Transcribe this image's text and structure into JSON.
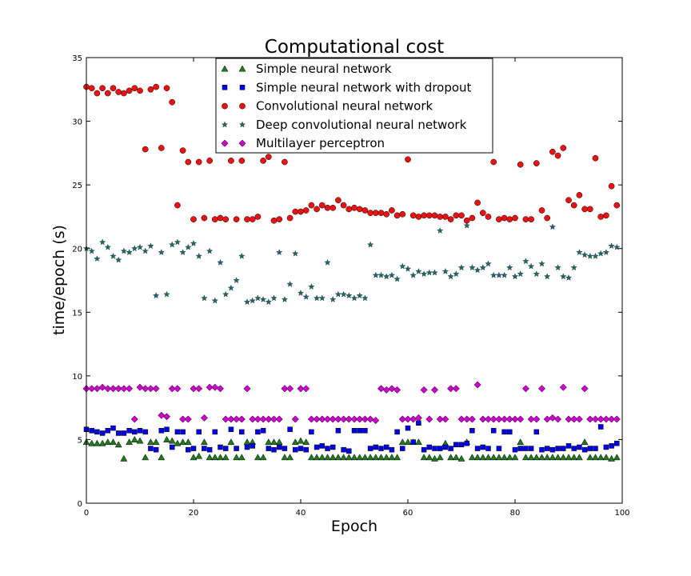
{
  "chart_data": {
    "type": "scatter",
    "title": "Computational cost",
    "xlabel": "Epoch",
    "ylabel": "time/epoch (s)",
    "xlim": [
      0,
      100
    ],
    "ylim": [
      0,
      35
    ],
    "xticks": [
      0,
      20,
      40,
      60,
      80,
      100
    ],
    "yticks": [
      0,
      5,
      10,
      15,
      20,
      25,
      30,
      35
    ],
    "grid": false,
    "legend_position": "top-center",
    "series": [
      {
        "name": "Simple neural network",
        "marker": "triangle",
        "color": "#1f7a1f",
        "x": [
          0,
          1,
          2,
          3,
          4,
          5,
          6,
          7,
          8,
          9,
          10,
          11,
          12,
          13,
          14,
          15,
          16,
          17,
          18,
          19,
          20,
          21,
          22,
          23,
          24,
          25,
          26,
          27,
          28,
          29,
          30,
          31,
          32,
          33,
          34,
          35,
          36,
          37,
          38,
          39,
          40,
          41,
          42,
          43,
          44,
          45,
          46,
          47,
          48,
          49,
          50,
          51,
          52,
          53,
          54,
          55,
          56,
          57,
          58,
          59,
          60,
          61,
          62,
          63,
          64,
          65,
          66,
          67,
          68,
          69,
          70,
          71,
          72,
          73,
          74,
          75,
          76,
          77,
          78,
          79,
          80,
          81,
          82,
          83,
          84,
          85,
          86,
          87,
          88,
          89,
          90,
          91,
          92,
          93,
          94,
          95,
          96,
          97,
          98,
          99
        ],
        "y": [
          4.8,
          4.7,
          4.7,
          4.7,
          4.8,
          4.8,
          4.6,
          3.5,
          4.8,
          5.0,
          4.9,
          3.6,
          4.8,
          4.8,
          3.6,
          5.0,
          4.9,
          4.7,
          4.8,
          4.8,
          3.6,
          3.7,
          4.8,
          3.6,
          3.6,
          3.6,
          3.6,
          4.8,
          3.6,
          3.6,
          4.8,
          4.8,
          3.6,
          3.6,
          4.8,
          4.8,
          4.8,
          3.6,
          3.6,
          4.8,
          4.9,
          4.8,
          3.6,
          3.6,
          3.6,
          3.6,
          3.6,
          3.6,
          3.6,
          3.6,
          3.6,
          3.6,
          3.6,
          3.6,
          3.6,
          3.6,
          3.6,
          3.6,
          3.6,
          4.8,
          4.8,
          4.8,
          4.8,
          3.6,
          3.6,
          3.5,
          3.6,
          4.7,
          3.6,
          3.6,
          3.5,
          4.8,
          3.6,
          3.6,
          3.6,
          3.6,
          3.6,
          3.6,
          3.6,
          3.6,
          3.6,
          4.8,
          3.6,
          3.6,
          3.6,
          3.6,
          3.6,
          3.6,
          3.6,
          3.6,
          3.6,
          3.6,
          3.6,
          4.8,
          3.6,
          3.6,
          3.6,
          3.6,
          3.5,
          3.6
        ]
      },
      {
        "name": "Simple neural network with dropout",
        "marker": "square",
        "color": "#0000ee",
        "x": [
          0,
          1,
          2,
          3,
          4,
          5,
          6,
          7,
          8,
          9,
          10,
          11,
          12,
          13,
          14,
          15,
          16,
          17,
          18,
          19,
          20,
          21,
          22,
          23,
          24,
          25,
          26,
          27,
          28,
          29,
          30,
          31,
          32,
          33,
          34,
          35,
          36,
          37,
          38,
          39,
          40,
          41,
          42,
          43,
          44,
          45,
          46,
          47,
          48,
          49,
          50,
          51,
          52,
          53,
          54,
          55,
          56,
          57,
          58,
          59,
          60,
          61,
          62,
          63,
          64,
          65,
          66,
          67,
          68,
          69,
          70,
          71,
          72,
          73,
          74,
          75,
          76,
          77,
          78,
          79,
          80,
          81,
          82,
          83,
          84,
          85,
          86,
          87,
          88,
          89,
          90,
          91,
          92,
          93,
          94,
          95,
          96,
          97,
          98,
          99
        ],
        "y": [
          5.8,
          5.7,
          5.6,
          5.5,
          5.7,
          5.9,
          5.5,
          5.5,
          5.7,
          5.6,
          5.7,
          5.6,
          4.3,
          4.2,
          5.7,
          5.8,
          4.4,
          5.6,
          5.6,
          4.2,
          4.3,
          5.6,
          4.3,
          4.2,
          5.6,
          4.4,
          4.3,
          5.8,
          4.3,
          5.6,
          4.4,
          4.5,
          5.6,
          5.7,
          4.3,
          4.2,
          4.4,
          4.3,
          5.8,
          4.2,
          4.3,
          4.2,
          5.6,
          4.4,
          4.5,
          4.3,
          4.4,
          5.7,
          4.2,
          4.1,
          5.7,
          5.7,
          5.7,
          4.3,
          4.4,
          4.3,
          4.4,
          4.2,
          5.6,
          4.3,
          5.9,
          4.8,
          6.3,
          4.2,
          4.4,
          4.3,
          4.3,
          4.4,
          4.3,
          4.6,
          4.6,
          4.7,
          5.7,
          4.3,
          4.4,
          4.3,
          5.7,
          4.3,
          5.6,
          5.6,
          4.2,
          4.3,
          4.3,
          4.3,
          5.6,
          4.2,
          4.3,
          4.2,
          4.3,
          4.3,
          4.5,
          4.3,
          4.4,
          4.2,
          4.3,
          4.3,
          6.0,
          4.4,
          4.5,
          4.7
        ]
      },
      {
        "name": "Convolutional neural network",
        "marker": "circle",
        "color": "#ee1111",
        "x": [
          0,
          1,
          2,
          3,
          4,
          5,
          6,
          7,
          8,
          9,
          10,
          11,
          12,
          13,
          14,
          15,
          16,
          17,
          18,
          19,
          20,
          21,
          22,
          23,
          24,
          25,
          26,
          27,
          28,
          29,
          30,
          31,
          32,
          33,
          34,
          35,
          36,
          37,
          38,
          39,
          40,
          41,
          42,
          43,
          44,
          45,
          46,
          47,
          48,
          49,
          50,
          51,
          52,
          53,
          54,
          55,
          56,
          57,
          58,
          59,
          60,
          61,
          62,
          63,
          64,
          65,
          66,
          67,
          68,
          69,
          70,
          71,
          72,
          73,
          74,
          75,
          76,
          77,
          78,
          79,
          80,
          81,
          82,
          83,
          84,
          85,
          86,
          87,
          88,
          89,
          90,
          91,
          92,
          93,
          94,
          95,
          96,
          97,
          98,
          99
        ],
        "y": [
          32.7,
          32.6,
          32.2,
          32.6,
          32.2,
          32.6,
          32.3,
          32.2,
          32.4,
          32.6,
          32.4,
          27.8,
          32.5,
          32.7,
          27.9,
          32.6,
          31.5,
          23.4,
          27.7,
          26.8,
          22.3,
          26.8,
          22.4,
          26.9,
          22.3,
          22.4,
          22.3,
          26.9,
          22.3,
          26.9,
          22.3,
          22.3,
          22.5,
          26.9,
          27.2,
          22.2,
          22.3,
          26.8,
          22.4,
          22.9,
          22.9,
          23.0,
          23.4,
          23.1,
          23.4,
          23.2,
          23.2,
          23.8,
          23.4,
          23.1,
          23.2,
          23.1,
          23.0,
          22.8,
          22.8,
          22.8,
          22.7,
          23.0,
          22.6,
          22.7,
          27.0,
          22.6,
          22.5,
          22.6,
          22.6,
          22.6,
          22.5,
          22.5,
          22.3,
          22.6,
          22.6,
          22.2,
          22.4,
          23.6,
          22.8,
          22.5,
          26.8,
          22.3,
          22.4,
          22.3,
          22.4,
          26.6,
          22.3,
          22.3,
          26.7,
          23.0,
          22.4,
          27.6,
          27.3,
          27.9,
          23.8,
          23.4,
          24.2,
          23.1,
          23.1,
          27.1,
          22.5,
          22.6,
          24.9,
          23.4
        ]
      },
      {
        "name": "Deep convolutional neural network",
        "marker": "star",
        "color": "#1a6b6b",
        "x": [
          0,
          1,
          2,
          3,
          4,
          5,
          6,
          7,
          8,
          9,
          10,
          11,
          12,
          13,
          14,
          15,
          16,
          17,
          18,
          19,
          20,
          21,
          22,
          23,
          24,
          25,
          26,
          27,
          28,
          29,
          30,
          31,
          32,
          33,
          34,
          35,
          36,
          37,
          38,
          39,
          40,
          41,
          42,
          43,
          44,
          45,
          46,
          47,
          48,
          49,
          50,
          51,
          52,
          53,
          54,
          55,
          56,
          57,
          58,
          59,
          60,
          61,
          62,
          63,
          64,
          65,
          66,
          67,
          68,
          69,
          70,
          71,
          72,
          73,
          74,
          75,
          76,
          77,
          78,
          79,
          80,
          81,
          82,
          83,
          84,
          85,
          86,
          87,
          88,
          89,
          90,
          91,
          92,
          93,
          94,
          95,
          96,
          97,
          98,
          99
        ],
        "y": [
          20.0,
          19.8,
          19.2,
          20.5,
          20.1,
          19.4,
          19.1,
          19.8,
          19.7,
          20.0,
          20.1,
          19.8,
          20.2,
          16.3,
          19.7,
          16.4,
          20.3,
          20.5,
          19.7,
          20.1,
          20.4,
          19.4,
          16.1,
          19.8,
          15.9,
          18.9,
          16.4,
          16.9,
          17.5,
          19.4,
          15.8,
          15.9,
          16.1,
          16.0,
          15.8,
          16.1,
          19.7,
          16.0,
          17.2,
          19.6,
          16.5,
          16.2,
          17.0,
          16.1,
          16.1,
          18.9,
          16.0,
          16.4,
          16.4,
          16.3,
          16.1,
          16.3,
          16.1,
          20.3,
          17.9,
          17.9,
          17.8,
          17.9,
          17.6,
          18.6,
          18.4,
          17.9,
          18.2,
          18.0,
          18.1,
          18.1,
          21.4,
          18.2,
          17.8,
          18.0,
          18.5,
          21.8,
          18.5,
          18.3,
          18.5,
          18.8,
          17.9,
          17.9,
          17.9,
          18.5,
          17.8,
          18.0,
          19.0,
          18.6,
          18.0,
          18.8,
          17.8,
          21.7,
          18.5,
          17.8,
          17.7,
          18.5,
          19.7,
          19.5,
          19.4,
          19.4,
          19.6,
          19.7,
          20.2,
          20.1
        ]
      },
      {
        "name": "Multilayer perceptron",
        "marker": "diamond",
        "color": "#cc00cc",
        "x": [
          0,
          1,
          2,
          3,
          4,
          5,
          6,
          7,
          8,
          9,
          10,
          11,
          12,
          13,
          14,
          15,
          16,
          17,
          18,
          19,
          20,
          21,
          22,
          23,
          24,
          25,
          26,
          27,
          28,
          29,
          30,
          31,
          32,
          33,
          34,
          35,
          36,
          37,
          38,
          39,
          40,
          41,
          42,
          43,
          44,
          45,
          46,
          47,
          48,
          49,
          50,
          51,
          52,
          53,
          54,
          55,
          56,
          57,
          58,
          59,
          60,
          61,
          62,
          63,
          64,
          65,
          66,
          67,
          68,
          69,
          70,
          71,
          72,
          73,
          74,
          75,
          76,
          77,
          78,
          79,
          80,
          81,
          82,
          83,
          84,
          85,
          86,
          87,
          88,
          89,
          90,
          91,
          92,
          93,
          94,
          95,
          96,
          97,
          98,
          99
        ],
        "y": [
          9.0,
          9.0,
          9.0,
          9.1,
          9.0,
          9.0,
          9.0,
          9.0,
          9.0,
          6.6,
          9.1,
          9.0,
          9.0,
          9.0,
          6.9,
          6.8,
          9.0,
          9.0,
          6.6,
          6.6,
          9.0,
          9.0,
          6.7,
          9.1,
          9.1,
          9.0,
          6.6,
          6.6,
          6.6,
          6.6,
          9.0,
          6.6,
          6.6,
          6.6,
          6.6,
          6.6,
          6.6,
          9.0,
          9.0,
          6.6,
          9.0,
          9.0,
          6.6,
          6.6,
          6.6,
          6.6,
          6.6,
          6.6,
          6.6,
          6.6,
          6.6,
          6.6,
          6.6,
          6.6,
          6.5,
          9.0,
          8.9,
          9.0,
          8.9,
          6.6,
          6.6,
          6.6,
          6.7,
          8.9,
          6.6,
          8.9,
          6.6,
          6.6,
          9.0,
          9.0,
          6.6,
          6.6,
          6.6,
          9.3,
          6.6,
          6.6,
          6.6,
          6.6,
          6.6,
          6.6,
          6.6,
          6.6,
          9.0,
          6.6,
          6.6,
          9.0,
          6.6,
          6.7,
          6.6,
          9.1,
          6.6,
          6.6,
          6.6,
          9.0,
          6.6,
          6.6,
          6.6,
          6.6,
          6.6,
          6.6
        ]
      }
    ]
  }
}
